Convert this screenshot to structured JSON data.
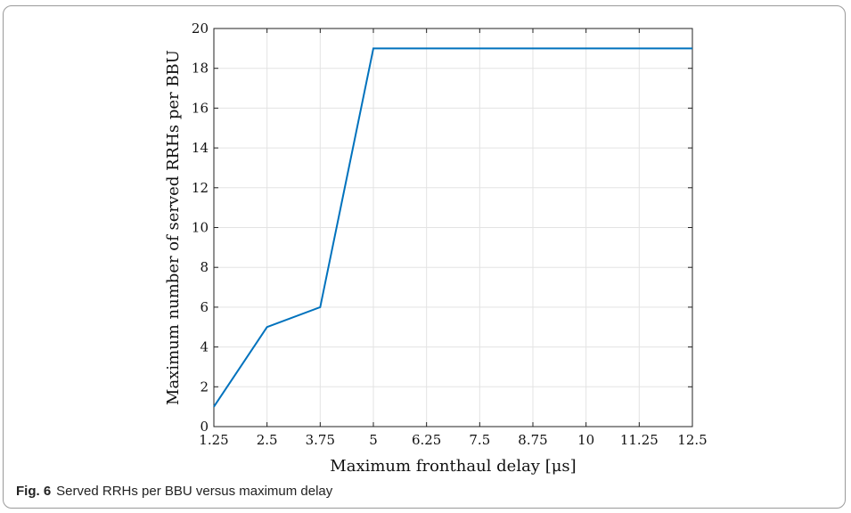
{
  "caption": {
    "figure_label": "Fig. 6",
    "text": "Served RRHs per BBU versus maximum delay"
  },
  "chart_data": {
    "type": "line",
    "xlabel": "Maximum fronthaul delay [μs]",
    "ylabel": "Maximum number of served RRHs per BBU",
    "xlim": [
      1.25,
      12.5
    ],
    "ylim": [
      0,
      20
    ],
    "xticks": [
      "1.25",
      "2.5",
      "3.75",
      "5",
      "6.25",
      "7.5",
      "8.75",
      "10",
      "11.25",
      "12.5"
    ],
    "yticks": [
      "0",
      "2",
      "4",
      "6",
      "8",
      "10",
      "12",
      "14",
      "16",
      "18",
      "20"
    ],
    "grid": true,
    "series": [
      {
        "color": "#0072bd",
        "x": [
          1.25,
          2.5,
          3.75,
          5,
          6.25,
          7.5,
          8.75,
          10,
          11.25,
          12.5
        ],
        "y": [
          1,
          5,
          6,
          19,
          19,
          19,
          19,
          19,
          19,
          19
        ]
      }
    ]
  }
}
